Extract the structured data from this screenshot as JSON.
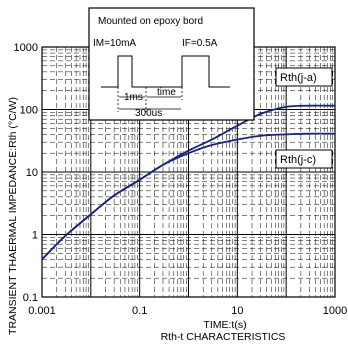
{
  "chart_data": {
    "type": "line",
    "title": "",
    "xlabel": "TIME:t(s)",
    "ylabel": "TRANSIENT THAERMAL IMPEDANCE:Rth (°C/W)",
    "caption": "Rth-t CHARACTERISTICS",
    "x_scale": "log",
    "y_scale": "log",
    "xlim": [
      0.001,
      1000
    ],
    "ylim": [
      0.1,
      1000
    ],
    "grid": true,
    "x_ticks": [
      "0.001",
      "0.1",
      "10",
      "1000"
    ],
    "x_tick_values": [
      0.001,
      0.1,
      10,
      1000
    ],
    "y_ticks": [
      "1000",
      "100",
      "10",
      "1",
      "0.1"
    ],
    "y_tick_values": [
      1000,
      100,
      10,
      1,
      0.1
    ],
    "line_color": "#1a237e",
    "series": [
      {
        "name": "Rth(j-a)",
        "x": [
          0.001,
          0.003,
          0.01,
          0.03,
          0.1,
          0.3,
          1,
          3,
          10,
          30,
          100,
          300,
          1000
        ],
        "y": [
          0.4,
          0.95,
          2.1,
          4.2,
          7.5,
          13,
          22,
          33,
          55,
          85,
          110,
          115,
          115
        ]
      },
      {
        "name": "Rth(j-c)",
        "x": [
          0.001,
          0.003,
          0.01,
          0.03,
          0.1,
          0.3,
          1,
          3,
          10,
          30,
          100,
          300,
          1000
        ],
        "y": [
          0.4,
          0.95,
          2.1,
          4.2,
          7.5,
          13,
          20,
          27,
          33,
          38,
          40,
          41,
          41
        ]
      }
    ],
    "inset": {
      "title": "Mounted on epoxy bord",
      "im_label": "IM=10mA",
      "if_label": "IF=0.5A",
      "t1_label": "1ms",
      "t2_label": "time",
      "t3_label": "300us"
    }
  }
}
